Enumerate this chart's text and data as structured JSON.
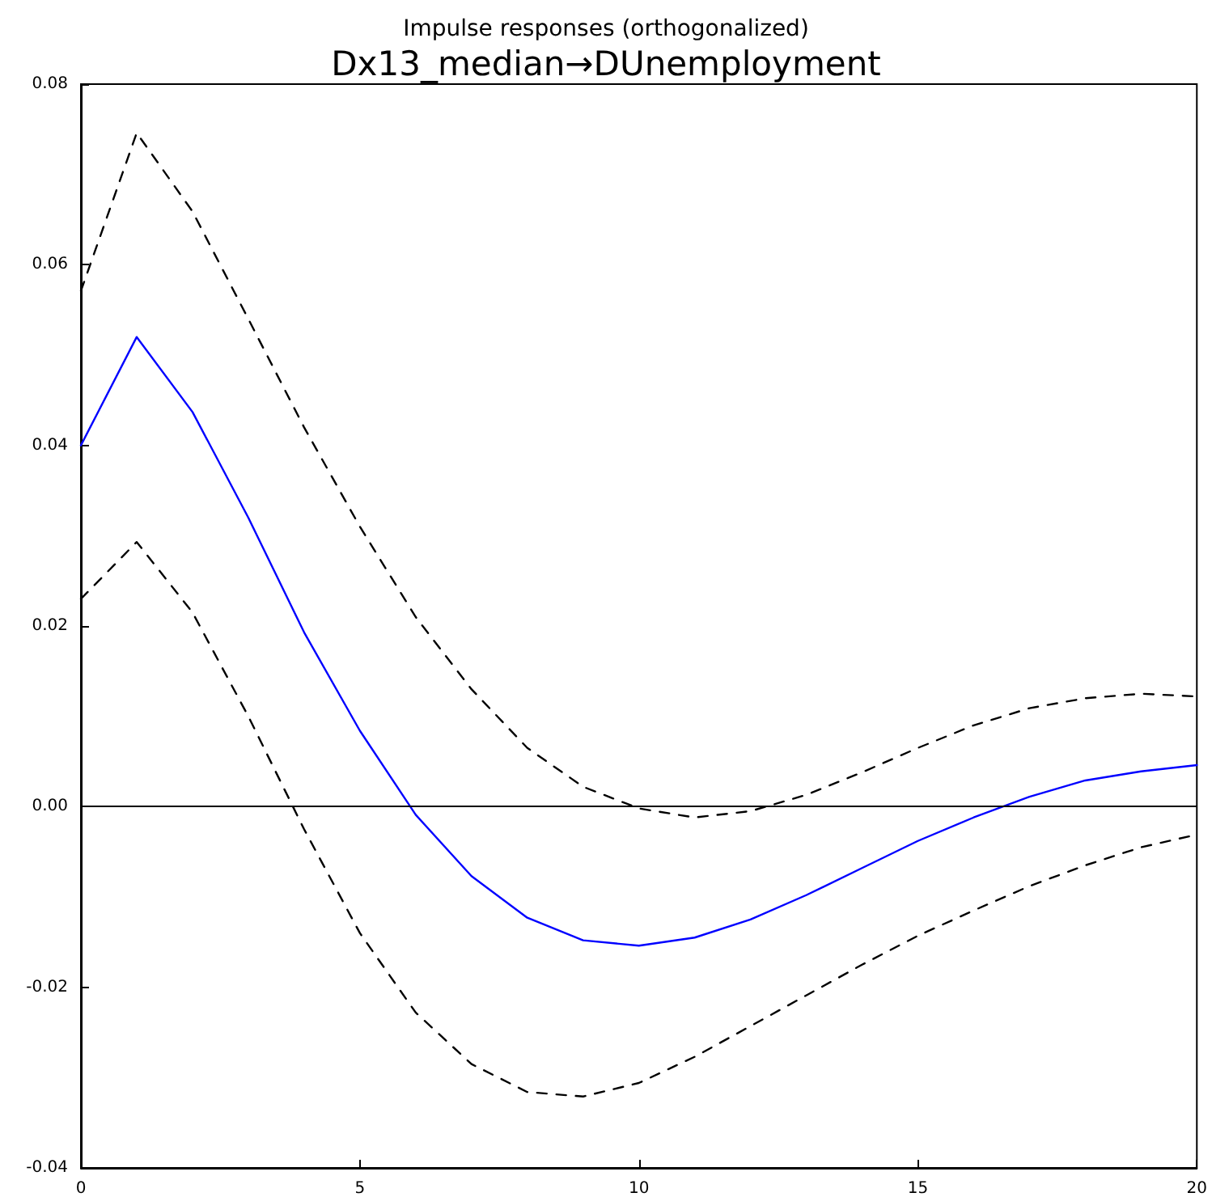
{
  "chart_data": {
    "type": "line",
    "title": "Impulse responses (orthogonalized)",
    "subtitle": "Dx13_median→DUnemployment",
    "x": [
      0,
      1,
      2,
      3,
      4,
      5,
      6,
      7,
      8,
      9,
      10,
      11,
      12,
      13,
      14,
      15,
      16,
      17,
      18,
      19,
      20
    ],
    "series": [
      {
        "color": "#0000ff",
        "line_style": "solid",
        "values": [
          0.04,
          0.052,
          0.0437,
          0.032,
          0.0193,
          0.0084,
          -0.0009,
          -0.0077,
          -0.0123,
          -0.0148,
          -0.0154,
          -0.0145,
          -0.0125,
          -0.0098,
          -0.0068,
          -0.0038,
          -0.0012,
          0.0011,
          0.0029,
          0.0039,
          0.0046
        ]
      },
      {
        "color": "#000000",
        "line_style": "dashed",
        "values": [
          0.0571,
          0.0746,
          0.0659,
          0.054,
          0.042,
          0.031,
          0.021,
          0.013,
          0.0065,
          0.0022,
          -0.0002,
          -0.0012,
          -0.0005,
          0.0013,
          0.0038,
          0.0065,
          0.009,
          0.0109,
          0.012,
          0.0125,
          0.0122
        ]
      },
      {
        "color": "#000000",
        "line_style": "dashed",
        "values": [
          0.023,
          0.0293,
          0.0215,
          0.01,
          -0.0025,
          -0.014,
          -0.0228,
          -0.0285,
          -0.0316,
          -0.0321,
          -0.0306,
          -0.0277,
          -0.0243,
          -0.0209,
          -0.0175,
          -0.0143,
          -0.0115,
          -0.0088,
          -0.0065,
          -0.0045,
          -0.0031
        ]
      }
    ],
    "xlim": [
      0,
      20
    ],
    "xticks": [
      0,
      5,
      10,
      15,
      20
    ],
    "ylim": [
      -0.04,
      0.08
    ],
    "yticks": [
      -0.04,
      -0.02,
      {
        "value": 0,
        "label": "0.00"
      },
      0.02,
      0.04,
      0.06,
      0.08
    ],
    "ref_lines": [
      {
        "axis": "y",
        "value": 0,
        "color": "#000000",
        "line_style": "solid"
      }
    ],
    "grid": false,
    "marker": "none"
  }
}
